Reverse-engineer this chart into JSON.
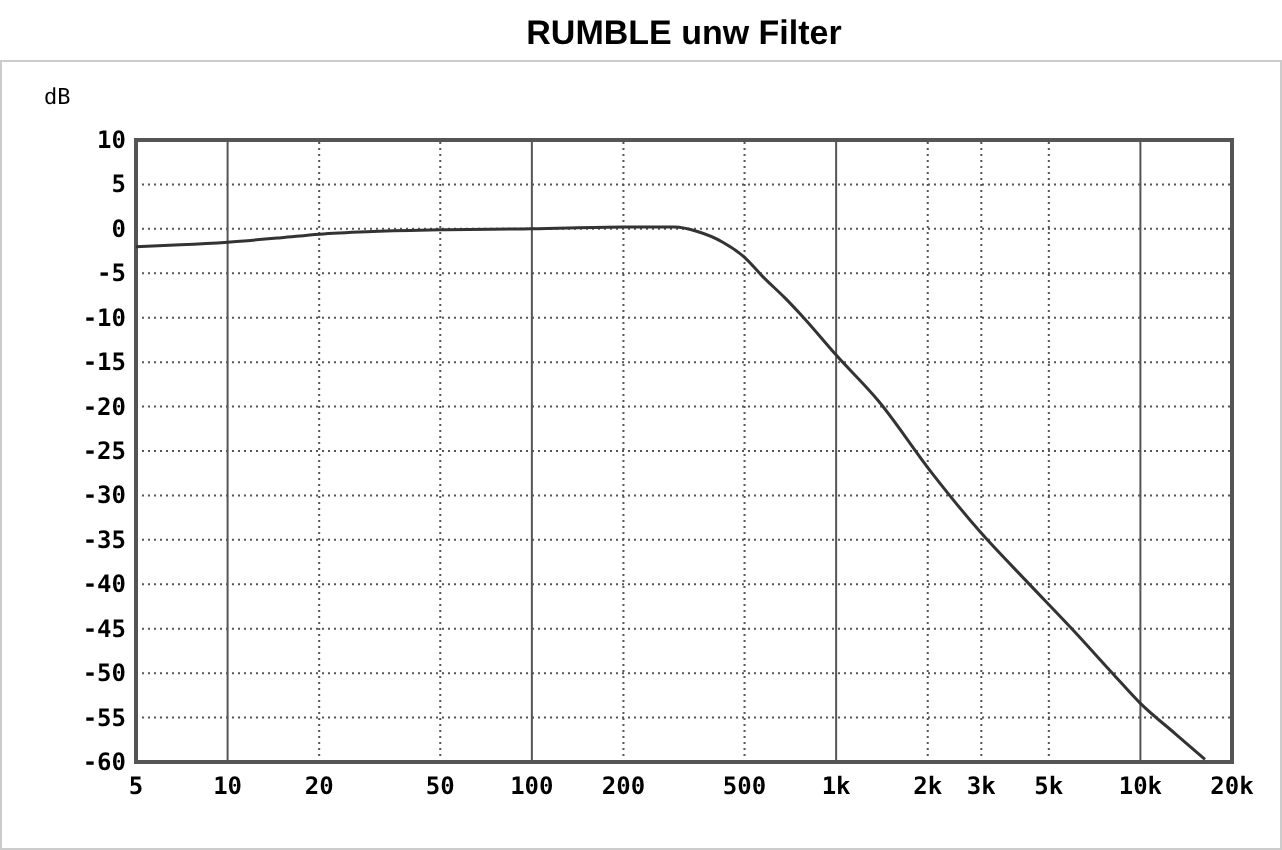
{
  "chart_data": {
    "type": "line",
    "title": "RUMBLE unw Filter",
    "ylabel": "dB",
    "log": "x",
    "grid": true,
    "line_style": "solid",
    "marker": "none",
    "xlim": [
      5,
      20000
    ],
    "xticks": [
      5,
      10,
      20,
      50,
      100,
      200,
      500,
      {
        "value": 1000,
        "label": "1k"
      },
      {
        "value": 2000,
        "label": "2k"
      },
      {
        "value": 3000,
        "label": "3k"
      },
      {
        "value": 5000,
        "label": "5k"
      },
      {
        "value": 10000,
        "label": "10k"
      },
      {
        "value": 20000,
        "label": "20k"
      }
    ],
    "ylim": [
      -60,
      10
    ],
    "yticks": [
      10,
      5,
      0,
      -5,
      -10,
      -15,
      -20,
      -25,
      -30,
      -35,
      -40,
      -45,
      -50,
      -55,
      -60
    ],
    "series": [
      {
        "color": "#333333",
        "x": [
          5,
          7,
          10,
          15,
          20,
          30,
          50,
          100,
          200,
          295,
          350,
          424,
          500,
          575,
          680,
          782,
          1000,
          1380,
          2056,
          2974,
          4236,
          6026,
          8190,
          10000,
          13000,
          16300
        ],
        "values": [
          -2,
          -1.8,
          -1.5,
          -1,
          -0.6,
          -0.3,
          -0.1,
          0,
          0.2,
          0.2,
          -0.3,
          -1.5,
          -3.2,
          -5.4,
          -7.8,
          -10,
          -14.2,
          -19.4,
          -27.4,
          -34.1,
          -39.7,
          -45.2,
          -50.2,
          -53.4,
          -56.8,
          -59.7
        ]
      }
    ]
  }
}
